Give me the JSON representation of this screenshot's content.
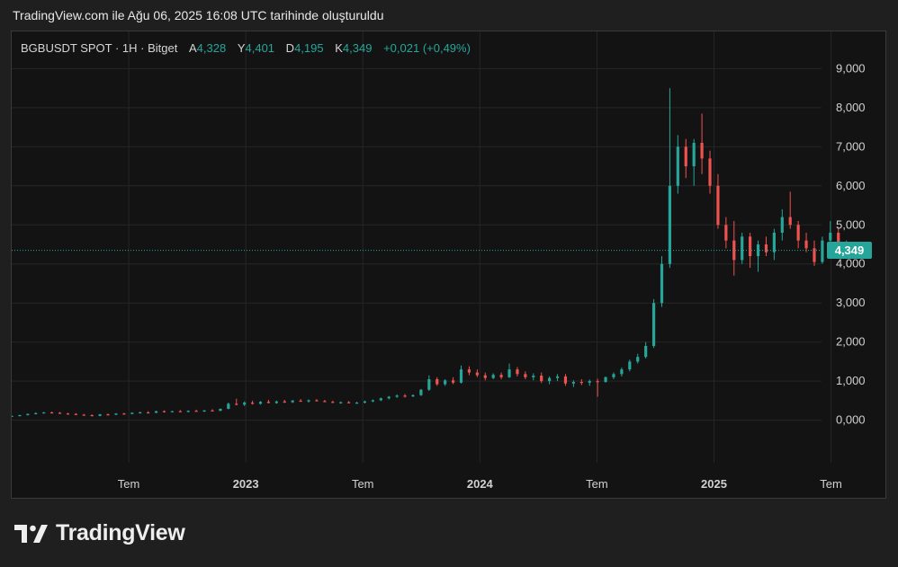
{
  "caption": "TradingView.com ile Ağu 06, 2025 16:08 UTC tarihinde oluşturuldu",
  "legend": {
    "symbol": "BGBUSDT SPOT · 1H · Bitget",
    "open_label": "A",
    "open": "4,328",
    "high_label": "Y",
    "high": "4,401",
    "low_label": "D",
    "low": "4,195",
    "close_label": "K",
    "close": "4,349",
    "change": "+0,021 (+0,49%)"
  },
  "brand": {
    "name": "TradingView",
    "icon": "tradingview-logo-icon"
  },
  "colors": {
    "up": "#26a69a",
    "down": "#ef5350",
    "grid": "#262626",
    "axis_text": "#d1d1d1"
  },
  "chart_data": {
    "type": "candlestick",
    "title": "",
    "xlabel": "",
    "ylabel": "",
    "ylim": [
      -0.4,
      9.4
    ],
    "y_ticks": [
      0,
      1,
      2,
      3,
      4,
      5,
      6,
      7,
      8,
      9
    ],
    "y_tick_labels": [
      "0,000",
      "1,000",
      "2,000",
      "3,000",
      "4,000",
      "5,000",
      "6,000",
      "7,000",
      "8,000",
      "9,000"
    ],
    "x_range": [
      2022.0,
      2025.74
    ],
    "x_ticks": [
      2022.5,
      2023.0,
      2023.5,
      2024.0,
      2024.5,
      2025.0,
      2025.5
    ],
    "x_tick_labels": [
      "Tem",
      "2023",
      "Tem",
      "2024",
      "Tem",
      "2025",
      "Tem"
    ],
    "x_tick_bold": [
      false,
      true,
      false,
      true,
      false,
      true,
      false
    ],
    "last_price": 4.349,
    "last_price_label": "4,349",
    "grid": true,
    "candles": [
      [
        0.1,
        0.12,
        0.09,
        0.11
      ],
      [
        0.11,
        0.14,
        0.1,
        0.13
      ],
      [
        0.13,
        0.17,
        0.12,
        0.16
      ],
      [
        0.16,
        0.2,
        0.15,
        0.18
      ],
      [
        0.18,
        0.21,
        0.17,
        0.2
      ],
      [
        0.2,
        0.22,
        0.18,
        0.19
      ],
      [
        0.19,
        0.21,
        0.16,
        0.17
      ],
      [
        0.17,
        0.19,
        0.15,
        0.16
      ],
      [
        0.16,
        0.18,
        0.13,
        0.14
      ],
      [
        0.14,
        0.16,
        0.12,
        0.13
      ],
      [
        0.13,
        0.15,
        0.1,
        0.11
      ],
      [
        0.11,
        0.16,
        0.1,
        0.15
      ],
      [
        0.15,
        0.17,
        0.13,
        0.14
      ],
      [
        0.14,
        0.18,
        0.13,
        0.17
      ],
      [
        0.17,
        0.19,
        0.15,
        0.16
      ],
      [
        0.16,
        0.2,
        0.15,
        0.19
      ],
      [
        0.19,
        0.22,
        0.18,
        0.2
      ],
      [
        0.2,
        0.23,
        0.18,
        0.19
      ],
      [
        0.19,
        0.24,
        0.18,
        0.23
      ],
      [
        0.23,
        0.25,
        0.2,
        0.21
      ],
      [
        0.21,
        0.24,
        0.2,
        0.23
      ],
      [
        0.23,
        0.26,
        0.21,
        0.22
      ],
      [
        0.22,
        0.25,
        0.2,
        0.24
      ],
      [
        0.24,
        0.27,
        0.22,
        0.23
      ],
      [
        0.23,
        0.26,
        0.21,
        0.25
      ],
      [
        0.25,
        0.28,
        0.23,
        0.24
      ],
      [
        0.24,
        0.3,
        0.23,
        0.29
      ],
      [
        0.29,
        0.45,
        0.28,
        0.42
      ],
      [
        0.42,
        0.55,
        0.38,
        0.4
      ],
      [
        0.4,
        0.48,
        0.36,
        0.45
      ],
      [
        0.45,
        0.5,
        0.4,
        0.42
      ],
      [
        0.42,
        0.49,
        0.4,
        0.47
      ],
      [
        0.47,
        0.52,
        0.43,
        0.44
      ],
      [
        0.44,
        0.5,
        0.42,
        0.48
      ],
      [
        0.48,
        0.52,
        0.44,
        0.46
      ],
      [
        0.46,
        0.52,
        0.44,
        0.5
      ],
      [
        0.5,
        0.54,
        0.47,
        0.48
      ],
      [
        0.48,
        0.53,
        0.45,
        0.51
      ],
      [
        0.51,
        0.54,
        0.48,
        0.49
      ],
      [
        0.49,
        0.52,
        0.46,
        0.47
      ],
      [
        0.47,
        0.5,
        0.44,
        0.45
      ],
      [
        0.45,
        0.48,
        0.42,
        0.46
      ],
      [
        0.46,
        0.49,
        0.43,
        0.44
      ],
      [
        0.44,
        0.47,
        0.42,
        0.45
      ],
      [
        0.45,
        0.5,
        0.43,
        0.48
      ],
      [
        0.48,
        0.53,
        0.46,
        0.51
      ],
      [
        0.51,
        0.58,
        0.49,
        0.56
      ],
      [
        0.56,
        0.62,
        0.53,
        0.6
      ],
      [
        0.6,
        0.66,
        0.57,
        0.63
      ],
      [
        0.63,
        0.67,
        0.58,
        0.61
      ],
      [
        0.61,
        0.66,
        0.59,
        0.64
      ],
      [
        0.64,
        0.8,
        0.62,
        0.78
      ],
      [
        0.78,
        1.15,
        0.75,
        1.05
      ],
      [
        1.05,
        1.1,
        0.88,
        0.92
      ],
      [
        0.92,
        1.05,
        0.88,
        1.02
      ],
      [
        1.02,
        1.1,
        0.92,
        0.96
      ],
      [
        0.96,
        1.4,
        0.94,
        1.3
      ],
      [
        1.3,
        1.38,
        1.15,
        1.22
      ],
      [
        1.22,
        1.3,
        1.1,
        1.15
      ],
      [
        1.15,
        1.22,
        1.02,
        1.08
      ],
      [
        1.08,
        1.2,
        1.05,
        1.16
      ],
      [
        1.16,
        1.22,
        1.05,
        1.1
      ],
      [
        1.1,
        1.45,
        1.08,
        1.3
      ],
      [
        1.3,
        1.36,
        1.12,
        1.18
      ],
      [
        1.18,
        1.25,
        1.05,
        1.1
      ],
      [
        1.1,
        1.2,
        1.02,
        1.14
      ],
      [
        1.14,
        1.22,
        0.95,
        1.0
      ],
      [
        1.0,
        1.12,
        0.92,
        1.08
      ],
      [
        1.08,
        1.18,
        1.0,
        1.12
      ],
      [
        1.12,
        1.18,
        0.88,
        0.94
      ],
      [
        0.94,
        1.02,
        0.85,
        0.98
      ],
      [
        0.98,
        1.05,
        0.9,
        0.96
      ],
      [
        0.96,
        1.04,
        0.88,
        1.0
      ],
      [
        1.0,
        1.06,
        0.6,
        0.98
      ],
      [
        0.98,
        1.12,
        0.96,
        1.1
      ],
      [
        1.1,
        1.22,
        1.05,
        1.18
      ],
      [
        1.18,
        1.35,
        1.12,
        1.3
      ],
      [
        1.3,
        1.55,
        1.25,
        1.5
      ],
      [
        1.5,
        1.7,
        1.45,
        1.62
      ],
      [
        1.62,
        2.0,
        1.58,
        1.9
      ],
      [
        1.9,
        3.1,
        1.85,
        3.0
      ],
      [
        3.0,
        4.2,
        2.9,
        4.0
      ],
      [
        4.0,
        8.5,
        3.9,
        6.0
      ],
      [
        6.0,
        7.3,
        5.8,
        7.0
      ],
      [
        7.0,
        7.2,
        6.2,
        6.5
      ],
      [
        6.5,
        7.2,
        6.0,
        7.1
      ],
      [
        7.1,
        7.85,
        6.3,
        6.7
      ],
      [
        6.7,
        6.9,
        5.8,
        6.0
      ],
      [
        6.0,
        6.3,
        4.9,
        5.0
      ],
      [
        5.0,
        5.2,
        4.4,
        4.6
      ],
      [
        4.6,
        5.1,
        3.7,
        4.1
      ],
      [
        4.1,
        4.8,
        4.0,
        4.7
      ],
      [
        4.7,
        4.8,
        3.9,
        4.2
      ],
      [
        4.2,
        4.6,
        3.8,
        4.5
      ],
      [
        4.5,
        4.7,
        4.2,
        4.3
      ],
      [
        4.3,
        4.9,
        4.1,
        4.8
      ],
      [
        4.8,
        5.4,
        4.6,
        5.2
      ],
      [
        5.2,
        5.85,
        4.9,
        5.0
      ],
      [
        5.0,
        5.1,
        4.4,
        4.6
      ],
      [
        4.6,
        4.8,
        4.3,
        4.4
      ],
      [
        4.4,
        4.6,
        3.95,
        4.05
      ],
      [
        4.05,
        4.7,
        4.0,
        4.6
      ],
      [
        4.6,
        5.1,
        4.4,
        4.8
      ],
      [
        4.8,
        4.95,
        4.4,
        4.5
      ],
      [
        4.5,
        4.6,
        4.2,
        4.33
      ],
      [
        4.328,
        4.401,
        4.195,
        4.349
      ]
    ]
  }
}
